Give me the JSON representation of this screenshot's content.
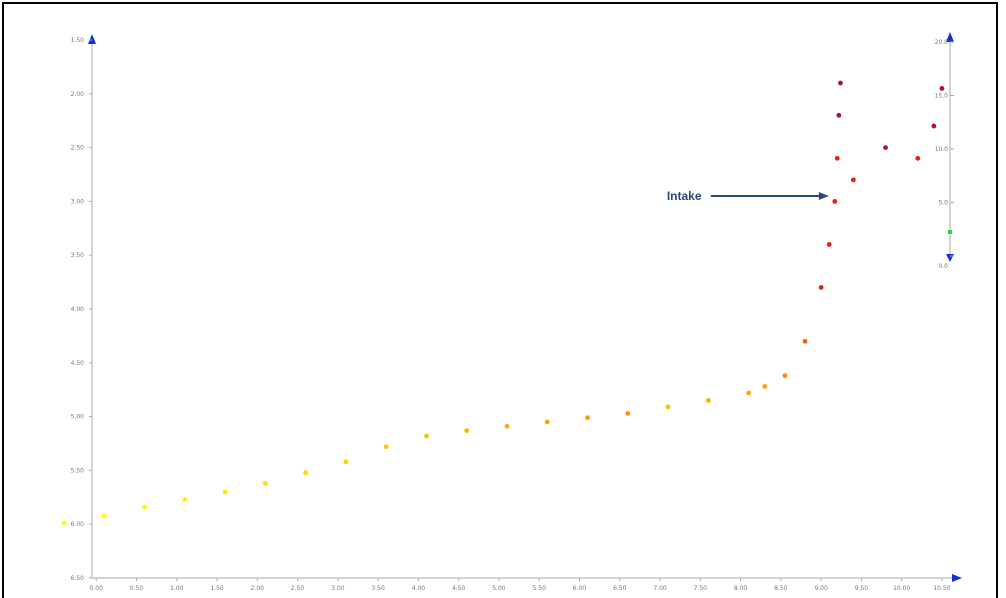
{
  "chart_data": {
    "type": "scatter",
    "title": "",
    "xlabel": "",
    "ylabel": "",
    "grid": false,
    "xlim": [
      -0.4,
      10.6
    ],
    "ylim_left": [
      6.5,
      1.5
    ],
    "ylim_right": [
      0.0,
      20.0
    ],
    "x_ticks": [
      "0.00",
      "0.50",
      "1.00",
      "1.50",
      "2.00",
      "2.50",
      "3.00",
      "3.50",
      "4.00",
      "4.50",
      "5.00",
      "5.50",
      "6.00",
      "6.50",
      "7.00",
      "7.50",
      "8.00",
      "8.50",
      "9.00",
      "9.50",
      "10.00",
      "10.50"
    ],
    "y_ticks_left": [
      "1.50",
      "2.00",
      "2.50",
      "3.00",
      "3.50",
      "4.00",
      "4.50",
      "5.00",
      "5.50",
      "6.00",
      "6.50"
    ],
    "y_ticks_right": [
      "20.0",
      "15.0",
      "10.0",
      "5.0",
      "0.0"
    ],
    "annotations": [
      {
        "text": "Intake",
        "target": {
          "x": 9.17,
          "y": 2.95
        }
      }
    ],
    "colors": {
      "low": "#ffff00",
      "mid": "#ff8c00",
      "high": "#e82010",
      "top": "#b0103a",
      "arrow": "#2a4a78",
      "axis_arrow": "#1030e0",
      "marker": "#30d030"
    },
    "series": [
      {
        "name": "",
        "points": [
          [
            -0.4,
            5.99
          ],
          [
            0.1,
            5.92
          ],
          [
            0.6,
            5.84
          ],
          [
            1.1,
            5.77
          ],
          [
            1.6,
            5.7
          ],
          [
            2.1,
            5.62
          ],
          [
            2.6,
            5.52
          ],
          [
            3.1,
            5.42
          ],
          [
            3.6,
            5.28
          ],
          [
            4.1,
            5.18
          ],
          [
            4.6,
            5.13
          ],
          [
            5.1,
            5.09
          ],
          [
            5.6,
            5.05
          ],
          [
            6.1,
            5.01
          ],
          [
            6.6,
            4.97
          ],
          [
            7.1,
            4.91
          ],
          [
            7.6,
            4.85
          ],
          [
            8.1,
            4.78
          ],
          [
            8.3,
            4.72
          ],
          [
            8.55,
            4.62
          ],
          [
            8.8,
            4.3
          ],
          [
            9.0,
            3.8
          ],
          [
            9.1,
            3.4
          ],
          [
            9.17,
            3.0
          ],
          [
            9.2,
            2.6
          ],
          [
            9.22,
            2.2
          ],
          [
            9.24,
            1.9
          ],
          [
            9.4,
            2.8
          ],
          [
            9.8,
            2.5
          ],
          [
            10.2,
            2.6
          ],
          [
            10.4,
            2.3
          ],
          [
            10.5,
            1.95
          ]
        ]
      }
    ]
  }
}
